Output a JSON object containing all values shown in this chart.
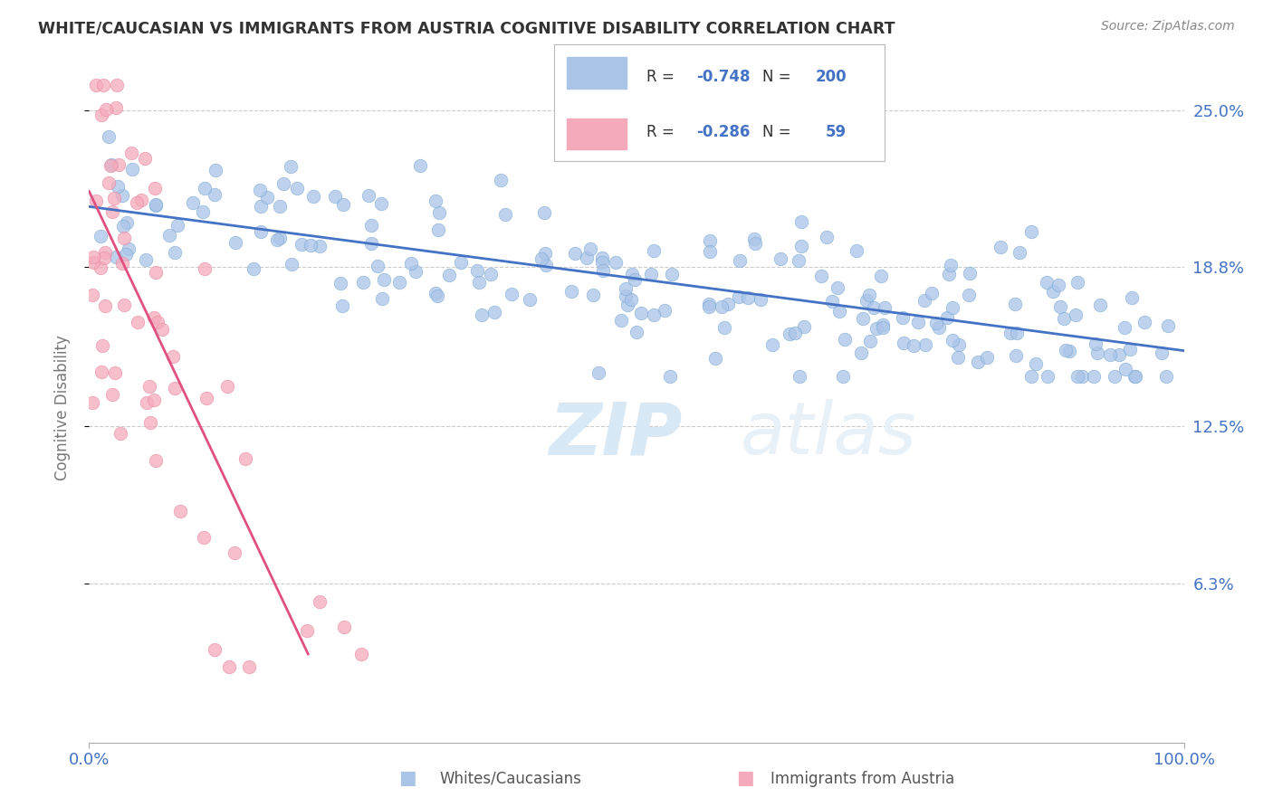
{
  "title": "WHITE/CAUCASIAN VS IMMIGRANTS FROM AUSTRIA COGNITIVE DISABILITY CORRELATION CHART",
  "source": "Source: ZipAtlas.com",
  "ylabel": "Cognitive Disability",
  "xlim": [
    0,
    100
  ],
  "ylim": [
    0,
    26.5
  ],
  "yticks": [
    6.3,
    12.5,
    18.8,
    25.0
  ],
  "xticks": [
    0,
    100
  ],
  "xtick_labels": [
    "0.0%",
    "100.0%"
  ],
  "ytick_labels": [
    "6.3%",
    "12.5%",
    "18.8%",
    "25.0%"
  ],
  "blue_color": "#aac4e8",
  "blue_edge_color": "#7aaad4",
  "blue_line_color": "#4472c4",
  "pink_color": "#f5aabb",
  "pink_edge_color": "#e888a0",
  "pink_line_color": "#e05080",
  "blue_R": -0.748,
  "blue_N": 200,
  "pink_R": -0.286,
  "pink_N": 59,
  "blue_line_start_x": 0,
  "blue_line_start_y": 21.2,
  "blue_line_end_x": 100,
  "blue_line_end_y": 15.5,
  "pink_line_start_x": 0,
  "pink_line_start_y": 21.8,
  "pink_line_end_x": 20,
  "pink_line_end_y": 3.5,
  "watermark_part1": "ZIP",
  "watermark_part2": "atlas",
  "legend_label_blue": "Whites/Caucasians",
  "legend_label_pink": "Immigrants from Austria",
  "background_color": "#ffffff",
  "grid_color": "#cccccc",
  "title_color": "#333333",
  "source_color": "#888888",
  "axis_label_color": "#4472c4",
  "ylabel_color": "#777777"
}
